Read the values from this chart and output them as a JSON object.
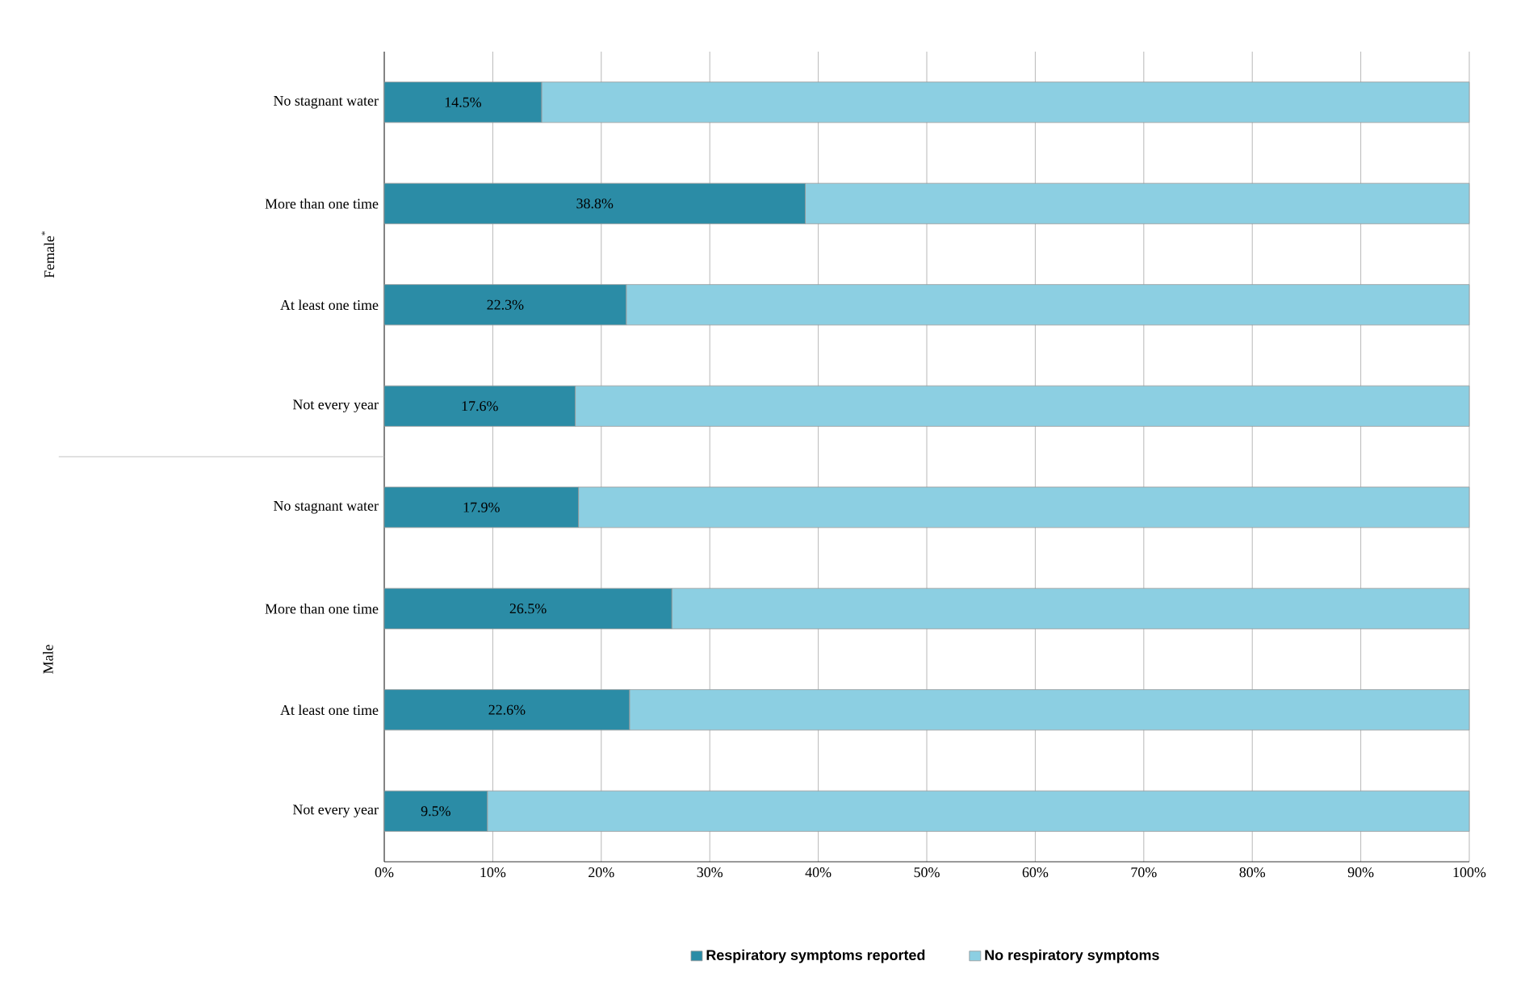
{
  "chart_data": {
    "type": "bar",
    "orientation": "horizontal",
    "stacked": true,
    "categories": [
      "No stagnant water",
      "More than one time",
      "At least one time",
      "Not every year",
      "No stagnant water",
      "More than one time",
      "At least one time",
      "Not every year"
    ],
    "series": [
      {
        "name": "Respiratory symptoms reported",
        "color": "#2b8ca6",
        "values": [
          14.5,
          38.8,
          22.3,
          17.6,
          17.9,
          26.5,
          22.6,
          9.5
        ],
        "value_labels": [
          "14.5%",
          "38.8%",
          "22.3%",
          "17.6%",
          "17.9%",
          "26.5%",
          "22.6%",
          "9.5%"
        ]
      },
      {
        "name": "No respiratory symptoms",
        "color": "#8ccfe2",
        "values": [
          85.5,
          61.2,
          77.7,
          82.4,
          82.1,
          73.5,
          77.4,
          90.5
        ]
      }
    ],
    "annotations": [
      "Female$^{*}$",
      "Male"
    ],
    "xlim": [
      0,
      100
    ],
    "xticks": [
      {
        "value": 0,
        "label": "0%"
      },
      {
        "value": 10,
        "label": "10%"
      },
      {
        "value": 20,
        "label": "20%"
      },
      {
        "value": 30,
        "label": "30%"
      },
      {
        "value": 40,
        "label": "40%"
      },
      {
        "value": 50,
        "label": "50%"
      },
      {
        "value": 60,
        "label": "60%"
      },
      {
        "value": 70,
        "label": "70%"
      },
      {
        "value": 80,
        "label": "80%"
      },
      {
        "value": 90,
        "label": "90%"
      },
      {
        "value": 100,
        "label": "100%"
      }
    ],
    "grid": "x",
    "legend": "bottom"
  }
}
